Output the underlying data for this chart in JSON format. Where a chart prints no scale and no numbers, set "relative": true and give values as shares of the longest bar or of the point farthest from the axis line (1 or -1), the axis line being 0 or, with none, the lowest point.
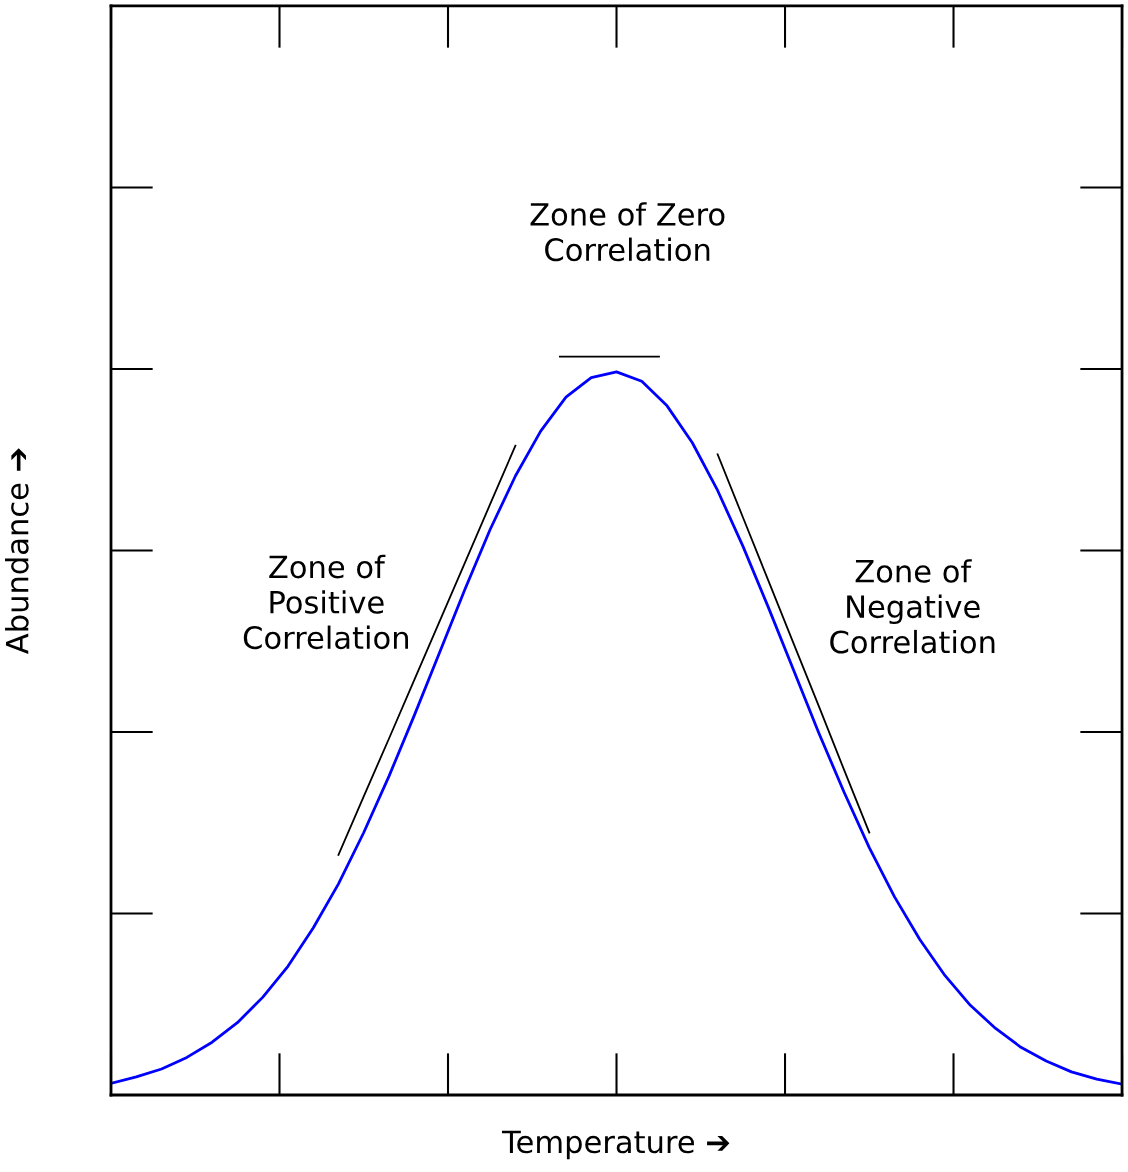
{
  "chart_data": {
    "type": "line",
    "relative": true,
    "xlabel": "Temperature ➔",
    "ylabel": "Abundance ➔",
    "categories": [
      null,
      null,
      null,
      null,
      null,
      null,
      null,
      null,
      null,
      null,
      null,
      null,
      null,
      null,
      null,
      null,
      null,
      null,
      null,
      null,
      null,
      null,
      null,
      null,
      null,
      null,
      null,
      null,
      null,
      null,
      null,
      null,
      null,
      null,
      null,
      null,
      null,
      null,
      null,
      null,
      null
    ],
    "series": [
      {
        "color": "#0000ff",
        "values": [
          0.016,
          0.025,
          0.036,
          0.052,
          0.073,
          0.1,
          0.135,
          0.178,
          0.231,
          0.292,
          0.363,
          0.441,
          0.525,
          0.612,
          0.699,
          0.782,
          0.856,
          0.918,
          0.965,
          0.992,
          1,
          0.987,
          0.953,
          0.902,
          0.836,
          0.759,
          0.675,
          0.588,
          0.501,
          0.419,
          0.342,
          0.274,
          0.215,
          0.165,
          0.124,
          0.092,
          0.066,
          0.047,
          0.032,
          0.022,
          0.015
        ]
      },
      {
        "type": "line",
        "color": "#000000",
        "values": [
          null,
          null,
          null,
          null,
          null,
          null,
          null,
          null,
          null,
          0.332,
          0.413,
          0.493,
          0.574,
          0.655,
          0.736,
          0.817,
          0.898,
          null,
          null,
          null,
          null,
          null,
          null,
          null,
          null,
          null,
          null,
          null,
          null,
          null,
          null,
          null,
          null,
          null,
          null,
          null,
          null,
          null,
          null,
          null,
          null
        ]
      },
      {
        "type": "line",
        "color": "#000000",
        "values": [
          null,
          null,
          null,
          null,
          null,
          null,
          null,
          null,
          null,
          null,
          null,
          null,
          null,
          null,
          null,
          null,
          null,
          null,
          null,
          null,
          null,
          null,
          null,
          null,
          0.886,
          0.799,
          0.712,
          0.625,
          0.538,
          0.45,
          0.363,
          null,
          null,
          null,
          null,
          null,
          null,
          null,
          null,
          null,
          null
        ]
      }
    ],
    "annotations": [
      "Zone of Zero\nCorrelation",
      "Zone of\nPositive\nCorrelation",
      "Zone of\nNegative\nCorrelation"
    ],
    "grid": false,
    "legend": false,
    "tick_labels": false,
    "marker": "none",
    "line_style": "solid"
  }
}
